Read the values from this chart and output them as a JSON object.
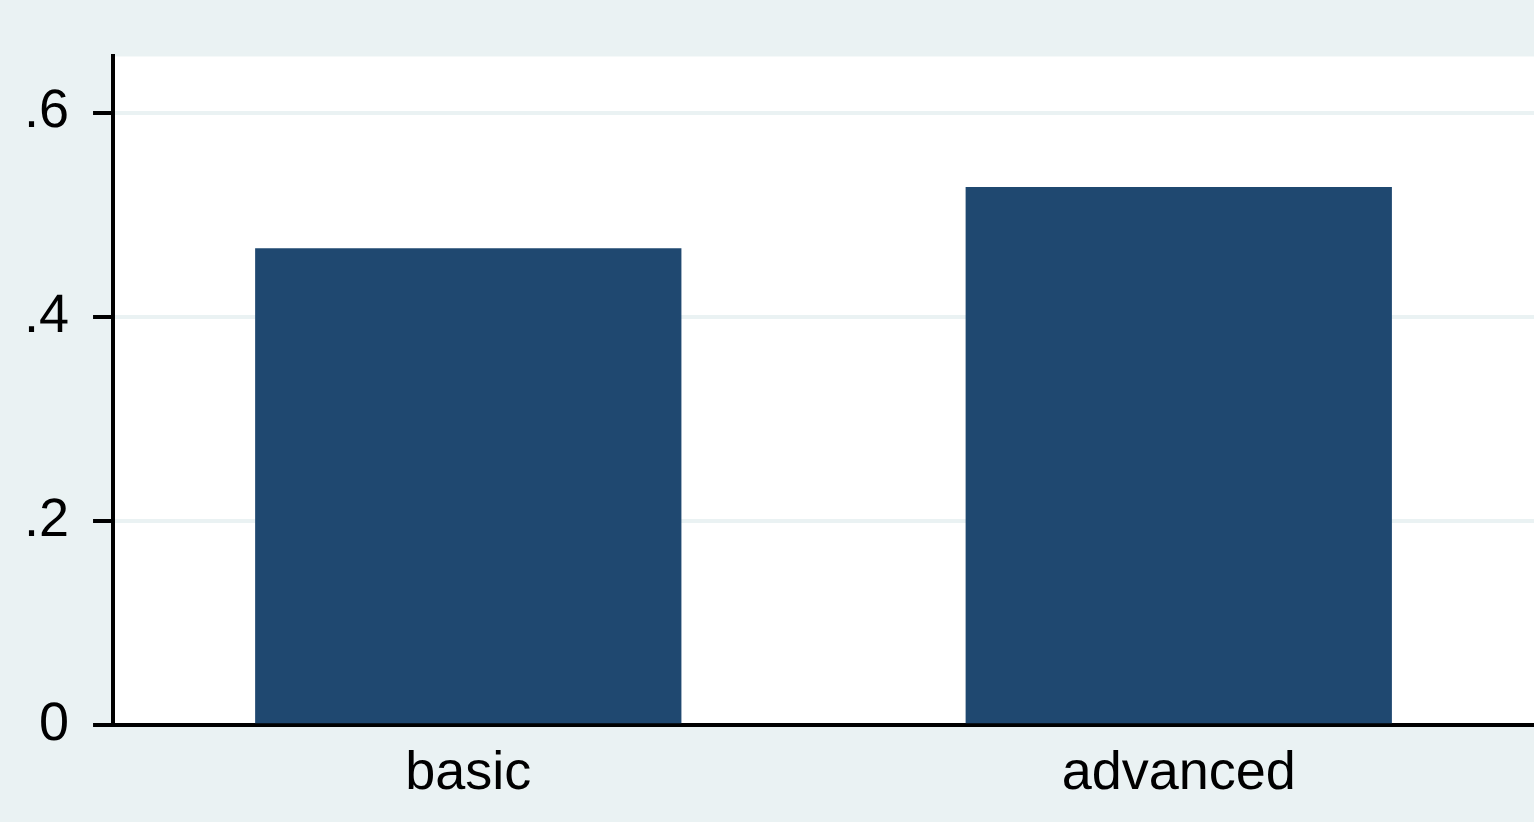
{
  "chart_data": {
    "type": "bar",
    "categories": [
      "basic",
      "advanced"
    ],
    "values": [
      0.467,
      0.527
    ],
    "color": "#1f4870",
    "ylim": [
      0,
      0.655
    ],
    "yticks": [
      {
        "value": 0,
        "label": "0"
      },
      {
        "value": 0.2,
        "label": ".2"
      },
      {
        "value": 0.4,
        "label": ".4"
      },
      {
        "value": 0.6,
        "label": ".6"
      }
    ],
    "grid": "y"
  }
}
